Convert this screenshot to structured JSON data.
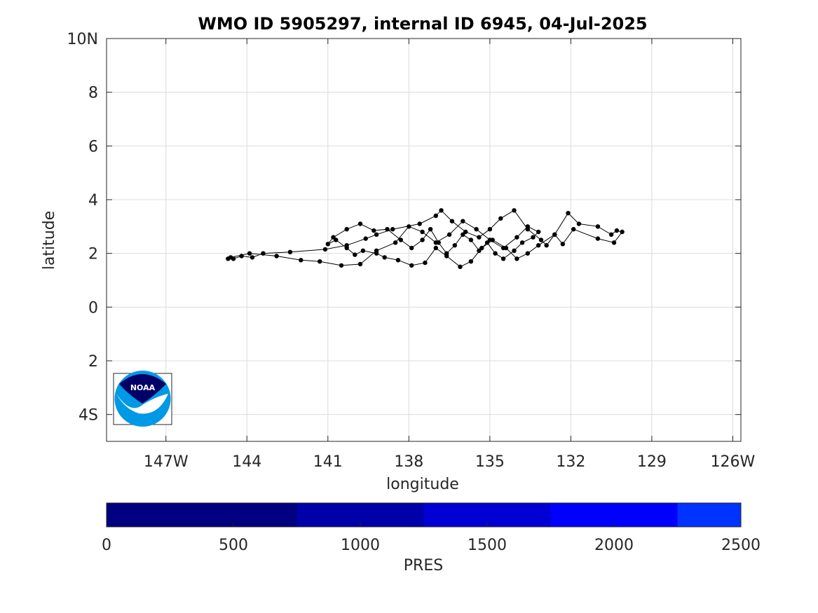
{
  "chart_data": {
    "type": "scatter",
    "title": "WMO ID 5905297, internal ID 6945, 04-Jul-2025",
    "xlabel": "longitude",
    "ylabel": "latitude",
    "xlim": [
      -149.2,
      -125.7
    ],
    "ylim": [
      -5,
      10
    ],
    "grid": true,
    "x_ticks": [
      {
        "value": -147,
        "label": "147W"
      },
      {
        "value": -144,
        "label": "144"
      },
      {
        "value": -141,
        "label": "141"
      },
      {
        "value": -138,
        "label": "138"
      },
      {
        "value": -135,
        "label": "135"
      },
      {
        "value": -132,
        "label": "132"
      },
      {
        "value": -129,
        "label": "129"
      },
      {
        "value": -126,
        "label": "126W"
      }
    ],
    "y_ticks": [
      {
        "value": 10,
        "label": "10N"
      },
      {
        "value": 8,
        "label": "8"
      },
      {
        "value": 6,
        "label": "6"
      },
      {
        "value": 4,
        "label": "4"
      },
      {
        "value": 2,
        "label": "2"
      },
      {
        "value": 0,
        "label": "0"
      },
      {
        "value": -2,
        "label": "2"
      },
      {
        "value": -4,
        "label": "4S"
      }
    ],
    "marker_color": "#000000",
    "line_color": "#000000",
    "series": [
      {
        "x": [
          -144.7,
          -144.5,
          -144.2,
          -143.8,
          -143.4,
          -142.4,
          -141.1,
          -140.3,
          -139.6,
          -139.2,
          -138.6,
          -137.6,
          -137.0,
          -136.8,
          -136.4,
          -135.9,
          -135.4,
          -135.0,
          -134.6,
          -134.1,
          -133.6,
          -133.1,
          -132.9,
          -132.6,
          -132.1,
          -131.7,
          -131.0,
          -130.5,
          -130.3,
          -130.1,
          -130.4,
          -131.0,
          -131.9,
          -132.3,
          -132.6,
          -133.2,
          -133.6,
          -134.0,
          -134.4,
          -134.9,
          -135.3,
          -135.7,
          -136.1,
          -136.6,
          -137.0,
          -137.4,
          -137.9,
          -138.4,
          -138.9,
          -139.2,
          -139.7,
          -140.0,
          -140.3,
          -140.7,
          -141.0,
          -140.8,
          -140.3,
          -139.8,
          -139.3,
          -138.8,
          -138.3,
          -137.9,
          -137.5,
          -137.2,
          -136.9,
          -136.6,
          -136.3,
          -136.0,
          -135.7,
          -135.4,
          -135.1,
          -134.8,
          -134.5,
          -134.1,
          -133.8,
          -133.4,
          -133.2,
          -133.6,
          -134.0,
          -134.5,
          -135.0,
          -135.5,
          -136.0,
          -136.5,
          -137.0,
          -137.5,
          -138.0,
          -138.5,
          -139.2,
          -139.8,
          -140.5,
          -141.3,
          -142.0,
          -142.9,
          -143.9,
          -144.6
        ],
        "y": [
          1.8,
          1.8,
          1.9,
          1.85,
          2.0,
          2.05,
          2.15,
          2.3,
          2.55,
          2.7,
          2.9,
          3.1,
          3.4,
          3.6,
          3.2,
          2.8,
          2.6,
          2.9,
          3.3,
          3.6,
          2.9,
          2.5,
          2.3,
          2.7,
          3.5,
          3.1,
          3.0,
          2.7,
          2.85,
          2.8,
          2.4,
          2.55,
          2.9,
          2.35,
          2.7,
          2.3,
          2.0,
          1.8,
          2.2,
          2.5,
          2.2,
          1.7,
          1.5,
          1.9,
          2.2,
          1.65,
          1.55,
          1.75,
          1.85,
          2.0,
          2.1,
          1.95,
          2.2,
          2.5,
          2.35,
          2.6,
          2.9,
          3.1,
          2.85,
          2.9,
          2.5,
          2.2,
          2.5,
          2.9,
          2.4,
          2.0,
          2.3,
          2.7,
          2.5,
          2.1,
          2.4,
          2.0,
          1.8,
          2.1,
          2.4,
          2.6,
          2.8,
          3.0,
          2.6,
          2.2,
          2.5,
          2.9,
          3.2,
          2.7,
          2.4,
          2.8,
          3.0,
          2.4,
          2.1,
          1.6,
          1.55,
          1.7,
          1.75,
          1.9,
          2.0,
          1.85
        ]
      }
    ],
    "colorbar": {
      "label": "PRES",
      "range": [
        0,
        2500
      ],
      "tick_values": [
        0,
        500,
        1000,
        1500,
        2000,
        2500
      ],
      "tick_labels": [
        "0",
        "500",
        "1000",
        "1500",
        "2000",
        "2500"
      ],
      "bands": [
        {
          "from": 0,
          "to": 750,
          "color": "#000080"
        },
        {
          "from": 750,
          "to": 1250,
          "color": "#0000AA"
        },
        {
          "from": 1250,
          "to": 1750,
          "color": "#0000D4"
        },
        {
          "from": 1750,
          "to": 2250,
          "color": "#0000FF"
        },
        {
          "from": 2250,
          "to": 2500,
          "color": "#0033FF"
        }
      ]
    },
    "logo": {
      "text": "NOAA",
      "colors": {
        "top": "#000066",
        "bottom": "#0099E6",
        "band": "#ffffff"
      }
    }
  }
}
